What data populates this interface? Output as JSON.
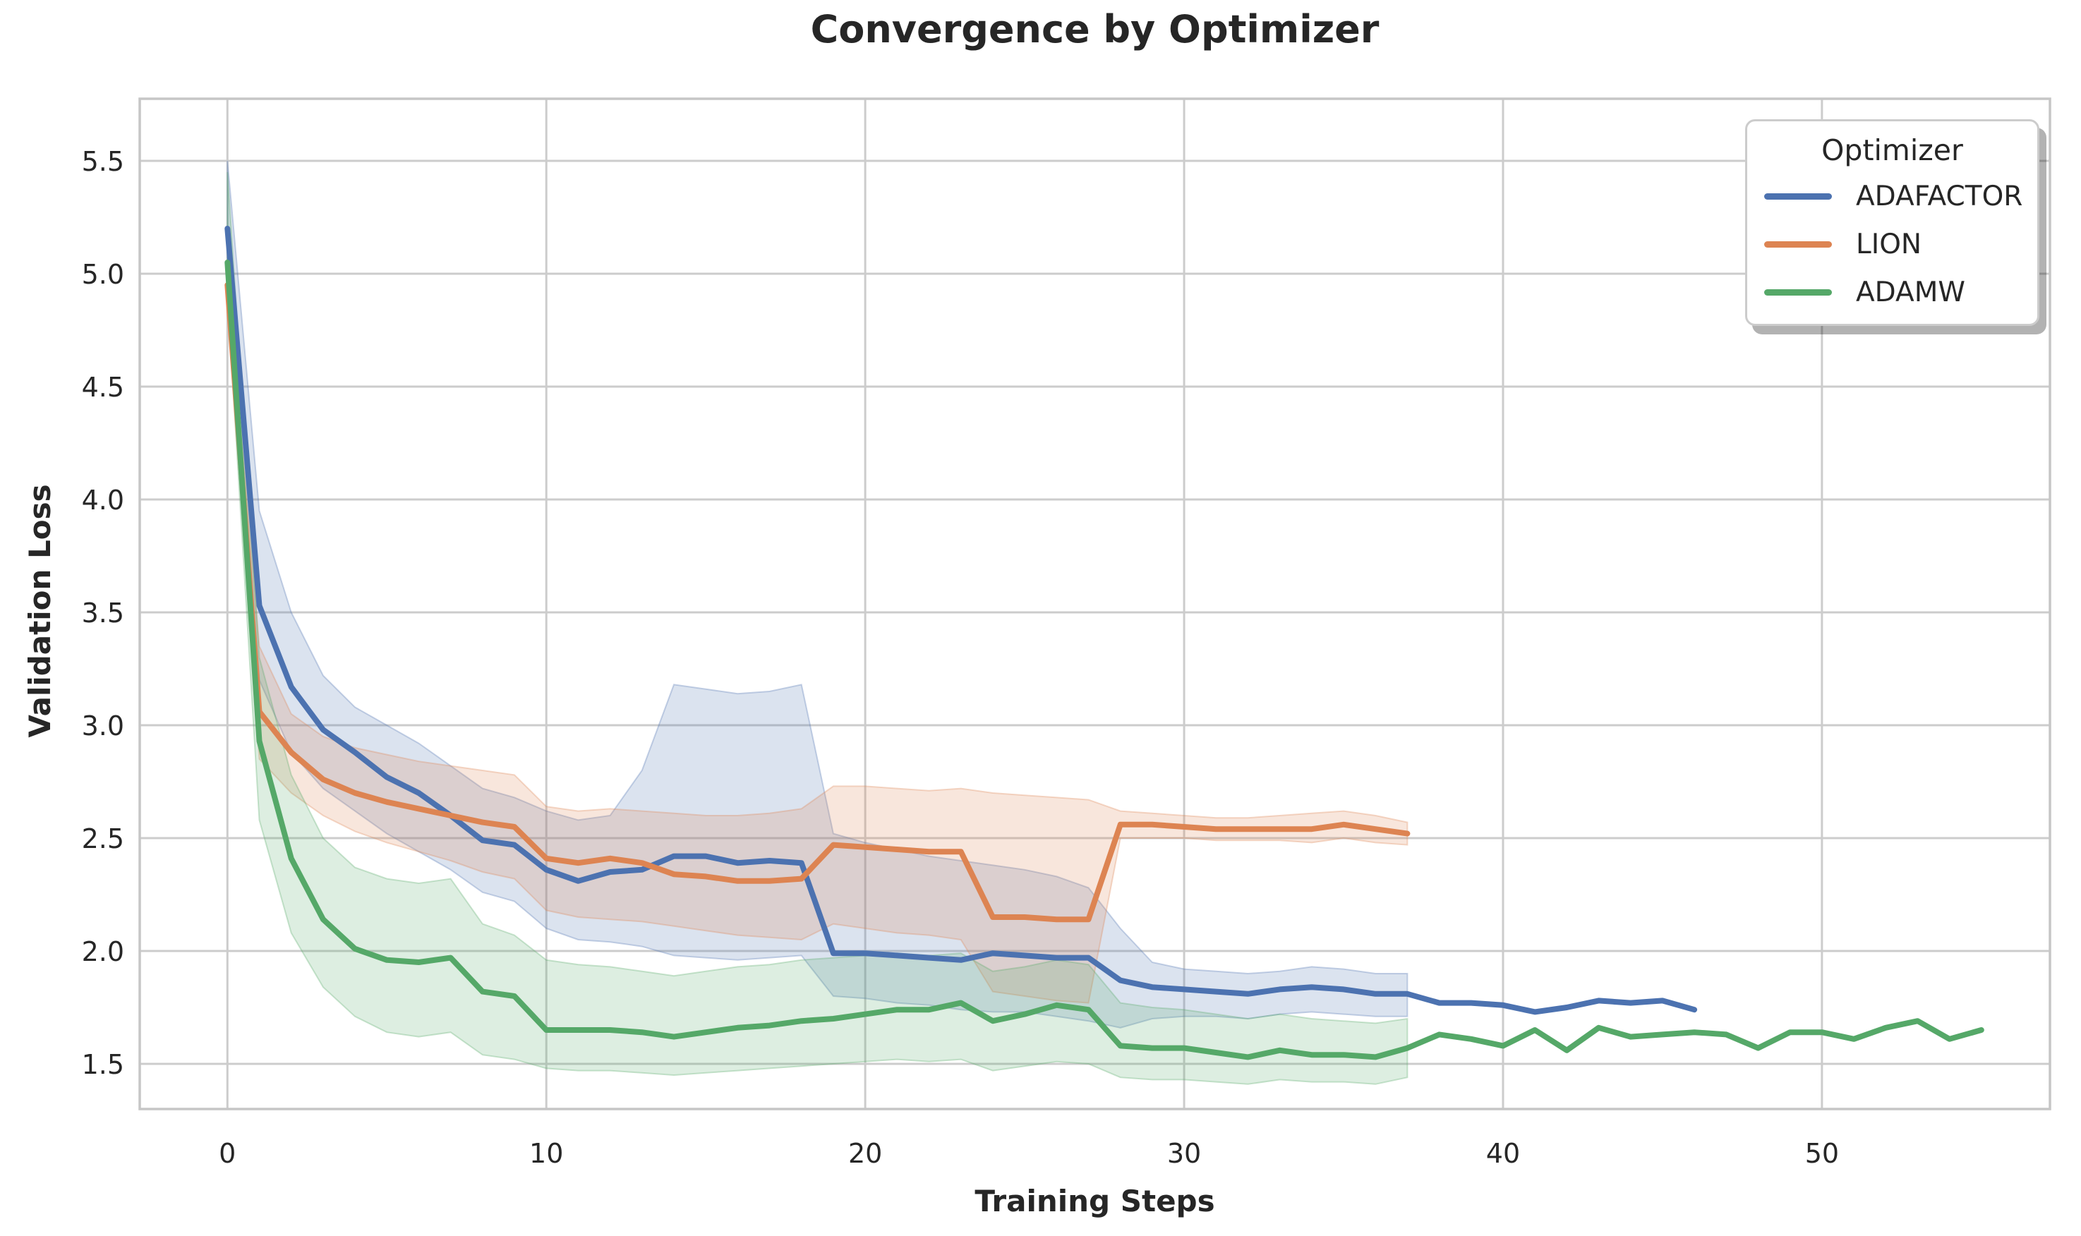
{
  "chart_data": {
    "type": "line",
    "title": "Convergence by Optimizer",
    "xlabel": "Training Steps",
    "ylabel": "Validation Loss",
    "xlim": [
      -2.75,
      57.15
    ],
    "ylim": [
      1.3,
      5.775
    ],
    "xticks": [
      0,
      10,
      20,
      30,
      40,
      50
    ],
    "yticks": [
      1.5,
      2.0,
      2.5,
      3.0,
      3.5,
      4.0,
      4.5,
      5.0,
      5.5
    ],
    "grid": true,
    "legend": {
      "title": "Optimizer",
      "position": "upper right"
    },
    "style": {
      "grid_color": "#cccccc",
      "spine_color": "#c6c6c6",
      "text_color": "#262626",
      "background": "#ffffff",
      "line_width": 8,
      "band_opacity": 0.2
    },
    "series": [
      {
        "name": "ADAFACTOR",
        "color": "#4C72B0",
        "x": [
          0,
          1,
          2,
          3,
          4,
          5,
          6,
          7,
          8,
          9,
          10,
          11,
          12,
          13,
          14,
          15,
          16,
          17,
          18,
          19,
          20,
          21,
          22,
          23,
          24,
          25,
          26,
          27,
          28,
          29,
          30,
          31,
          32,
          33,
          34,
          35,
          36,
          37,
          38,
          39,
          40,
          41,
          42,
          43,
          44,
          45,
          46
        ],
        "y": [
          5.2,
          3.53,
          3.17,
          2.98,
          2.88,
          2.77,
          2.7,
          2.6,
          2.49,
          2.47,
          2.36,
          2.31,
          2.35,
          2.36,
          2.42,
          2.42,
          2.39,
          2.4,
          2.39,
          1.99,
          1.99,
          1.98,
          1.97,
          1.96,
          1.99,
          1.98,
          1.97,
          1.97,
          1.87,
          1.84,
          1.83,
          1.82,
          1.81,
          1.83,
          1.84,
          1.83,
          1.81,
          1.81,
          1.77,
          1.77,
          1.76,
          1.73,
          1.75,
          1.78,
          1.77,
          1.78,
          1.74
        ],
        "band": {
          "x": [
            0,
            1,
            2,
            3,
            4,
            5,
            6,
            7,
            8,
            9,
            10,
            11,
            12,
            13,
            14,
            15,
            16,
            17,
            18,
            19,
            20,
            21,
            22,
            23,
            24,
            25,
            26,
            27,
            28,
            29,
            30,
            31,
            32,
            33,
            34,
            35,
            36,
            37
          ],
          "upper": [
            5.5,
            3.95,
            3.5,
            3.22,
            3.08,
            3.0,
            2.92,
            2.82,
            2.72,
            2.68,
            2.62,
            2.58,
            2.6,
            2.8,
            3.18,
            3.16,
            3.14,
            3.15,
            3.18,
            2.52,
            2.48,
            2.45,
            2.42,
            2.4,
            2.38,
            2.36,
            2.33,
            2.28,
            2.1,
            1.95,
            1.92,
            1.91,
            1.9,
            1.91,
            1.93,
            1.92,
            1.9,
            1.9
          ],
          "lower": [
            5.05,
            3.2,
            2.88,
            2.72,
            2.62,
            2.52,
            2.44,
            2.36,
            2.26,
            2.22,
            2.1,
            2.05,
            2.04,
            2.02,
            1.98,
            1.97,
            1.96,
            1.97,
            1.98,
            1.8,
            1.79,
            1.77,
            1.76,
            1.74,
            1.73,
            1.73,
            1.71,
            1.69,
            1.66,
            1.7,
            1.71,
            1.71,
            1.7,
            1.72,
            1.73,
            1.72,
            1.71,
            1.71
          ]
        }
      },
      {
        "name": "LION",
        "color": "#DD8452",
        "x": [
          0,
          1,
          2,
          3,
          4,
          5,
          6,
          7,
          8,
          9,
          10,
          11,
          12,
          13,
          14,
          15,
          16,
          17,
          18,
          19,
          20,
          21,
          22,
          23,
          24,
          25,
          26,
          27,
          28,
          29,
          30,
          31,
          32,
          33,
          34,
          35,
          36,
          37
        ],
        "y": [
          4.95,
          3.06,
          2.88,
          2.76,
          2.7,
          2.66,
          2.63,
          2.6,
          2.57,
          2.55,
          2.41,
          2.39,
          2.41,
          2.39,
          2.34,
          2.33,
          2.31,
          2.31,
          2.32,
          2.47,
          2.46,
          2.45,
          2.44,
          2.44,
          2.15,
          2.15,
          2.14,
          2.14,
          2.56,
          2.56,
          2.55,
          2.54,
          2.54,
          2.54,
          2.54,
          2.56,
          2.54,
          2.52
        ],
        "band": {
          "x": [
            0,
            1,
            2,
            3,
            4,
            5,
            6,
            7,
            8,
            9,
            10,
            11,
            12,
            13,
            14,
            15,
            16,
            17,
            18,
            19,
            20,
            21,
            22,
            23,
            24,
            25,
            26,
            27,
            28,
            29,
            30,
            31,
            32,
            33,
            34,
            35,
            36,
            37
          ],
          "upper": [
            5.0,
            3.35,
            3.05,
            2.95,
            2.9,
            2.87,
            2.84,
            2.82,
            2.8,
            2.78,
            2.64,
            2.62,
            2.63,
            2.62,
            2.61,
            2.6,
            2.6,
            2.61,
            2.63,
            2.73,
            2.73,
            2.72,
            2.71,
            2.72,
            2.7,
            2.69,
            2.68,
            2.67,
            2.62,
            2.61,
            2.6,
            2.59,
            2.59,
            2.6,
            2.61,
            2.62,
            2.6,
            2.57
          ],
          "lower": [
            4.9,
            2.85,
            2.7,
            2.6,
            2.53,
            2.48,
            2.44,
            2.4,
            2.35,
            2.32,
            2.18,
            2.15,
            2.14,
            2.13,
            2.11,
            2.09,
            2.07,
            2.06,
            2.05,
            2.12,
            2.1,
            2.08,
            2.07,
            2.05,
            1.82,
            1.8,
            1.78,
            1.77,
            2.5,
            2.5,
            2.5,
            2.49,
            2.49,
            2.49,
            2.48,
            2.5,
            2.48,
            2.47
          ]
        }
      },
      {
        "name": "ADAMW",
        "color": "#55A868",
        "x": [
          0,
          1,
          2,
          3,
          4,
          5,
          6,
          7,
          8,
          9,
          10,
          11,
          12,
          13,
          14,
          15,
          16,
          17,
          18,
          19,
          20,
          21,
          22,
          23,
          24,
          25,
          26,
          27,
          28,
          29,
          30,
          31,
          32,
          33,
          34,
          35,
          36,
          37,
          38,
          39,
          40,
          41,
          42,
          43,
          44,
          45,
          46,
          47,
          48,
          49,
          50,
          51,
          52,
          53,
          54,
          55
        ],
        "y": [
          5.05,
          2.93,
          2.41,
          2.14,
          2.01,
          1.96,
          1.95,
          1.97,
          1.82,
          1.8,
          1.65,
          1.65,
          1.65,
          1.64,
          1.62,
          1.64,
          1.66,
          1.67,
          1.69,
          1.7,
          1.72,
          1.74,
          1.74,
          1.77,
          1.69,
          1.72,
          1.76,
          1.74,
          1.58,
          1.57,
          1.57,
          1.55,
          1.53,
          1.56,
          1.54,
          1.54,
          1.53,
          1.57,
          1.63,
          1.61,
          1.58,
          1.65,
          1.56,
          1.66,
          1.62,
          1.63,
          1.64,
          1.63,
          1.57,
          1.64,
          1.64,
          1.61,
          1.66,
          1.69,
          1.61,
          1.65
        ],
        "band": {
          "x": [
            0,
            1,
            2,
            3,
            4,
            5,
            6,
            7,
            8,
            9,
            10,
            11,
            12,
            13,
            14,
            15,
            16,
            17,
            18,
            19,
            20,
            21,
            22,
            23,
            24,
            25,
            26,
            27,
            28,
            29,
            30,
            31,
            32,
            33,
            34,
            35,
            36,
            37
          ],
          "upper": [
            5.45,
            3.3,
            2.78,
            2.5,
            2.37,
            2.32,
            2.3,
            2.32,
            2.12,
            2.07,
            1.96,
            1.94,
            1.93,
            1.91,
            1.89,
            1.91,
            1.93,
            1.94,
            1.96,
            1.97,
            1.98,
            1.99,
            1.98,
            1.99,
            1.91,
            1.93,
            1.96,
            1.94,
            1.77,
            1.75,
            1.74,
            1.72,
            1.7,
            1.72,
            1.7,
            1.69,
            1.68,
            1.7
          ],
          "lower": [
            4.9,
            2.58,
            2.08,
            1.84,
            1.71,
            1.64,
            1.62,
            1.64,
            1.54,
            1.52,
            1.48,
            1.47,
            1.47,
            1.46,
            1.45,
            1.46,
            1.47,
            1.48,
            1.49,
            1.5,
            1.51,
            1.52,
            1.51,
            1.52,
            1.47,
            1.49,
            1.51,
            1.5,
            1.44,
            1.43,
            1.43,
            1.42,
            1.41,
            1.43,
            1.42,
            1.42,
            1.41,
            1.44
          ]
        }
      }
    ]
  }
}
